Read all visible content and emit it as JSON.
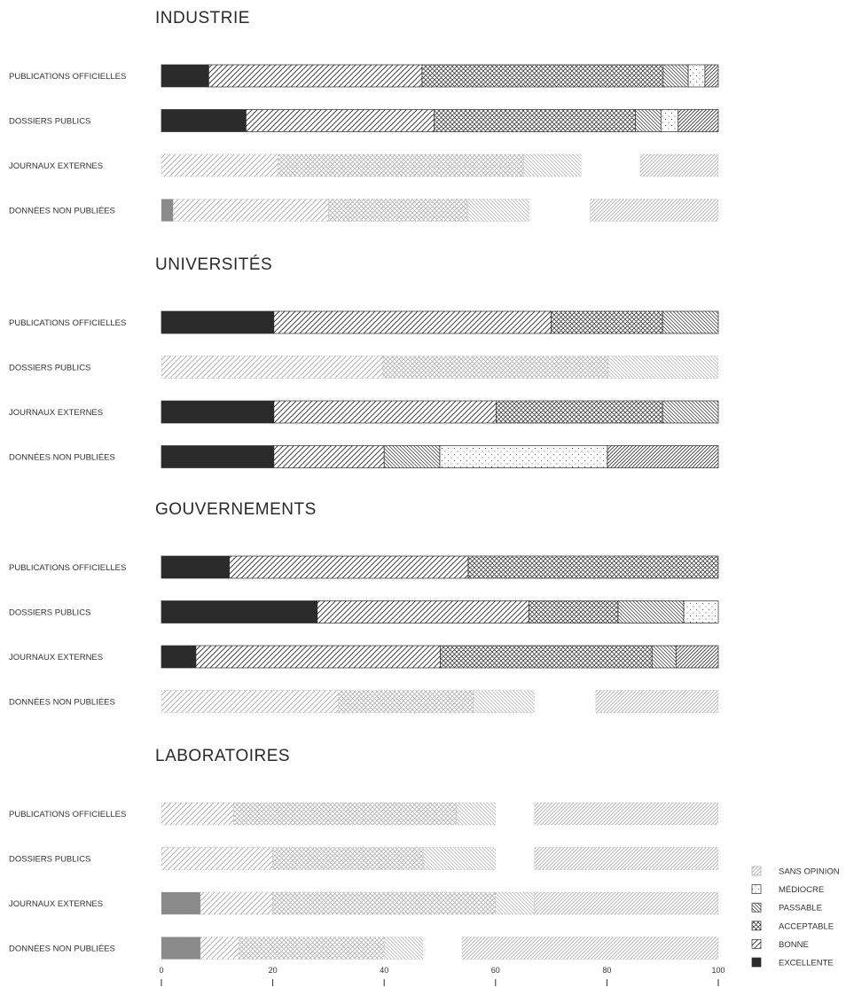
{
  "chart_data": {
    "type": "bar",
    "orientation": "horizontal",
    "stacked": true,
    "xlim": [
      0,
      100
    ],
    "x_ticks": [
      "0",
      "20",
      "40",
      "60",
      "80",
      "100"
    ],
    "grid": false,
    "legend_position": "bottom-right",
    "categories_legend": [
      {
        "name": "SANS OPINION",
        "pattern": "sans_opinion"
      },
      {
        "name": "MÉDIOCRE",
        "pattern": "mediocre"
      },
      {
        "name": "PASSABLE",
        "pattern": "passable"
      },
      {
        "name": "ACCEPTABLE",
        "pattern": "acceptable"
      },
      {
        "name": "BONNE",
        "pattern": "bonne"
      },
      {
        "name": "EXCELLENTE",
        "pattern": "excellente"
      }
    ],
    "groups": [
      {
        "title": "INDUSTRIE",
        "rows": [
          {
            "label": "PUBLICATIONS OFFICIELLES",
            "faded": false,
            "segments": [
              {
                "category": "EXCELLENTE",
                "start": 0,
                "end": 8.5
              },
              {
                "category": "BONNE",
                "start": 8.5,
                "end": 46.8
              },
              {
                "category": "ACCEPTABLE",
                "start": 46.8,
                "end": 90.1
              },
              {
                "category": "PASSABLE",
                "start": 90.1,
                "end": 94.6
              },
              {
                "category": "MÉDIOCRE",
                "start": 94.6,
                "end": 97.6
              },
              {
                "category": "SANS OPINION",
                "start": 97.6,
                "end": 100
              }
            ]
          },
          {
            "label": "DOSSIERS PUBLICS",
            "faded": false,
            "segments": [
              {
                "category": "EXCELLENTE",
                "start": 0,
                "end": 15.2
              },
              {
                "category": "BONNE",
                "start": 15.2,
                "end": 49
              },
              {
                "category": "ACCEPTABLE",
                "start": 49,
                "end": 85.1
              },
              {
                "category": "PASSABLE",
                "start": 85.1,
                "end": 89.7
              },
              {
                "category": "MÉDIOCRE",
                "start": 89.7,
                "end": 92.8
              },
              {
                "category": "SANS OPINION",
                "start": 92.8,
                "end": 100
              }
            ]
          },
          {
            "label": "JOURNAUX EXTERNES",
            "faded": true,
            "segments": [
              {
                "category": "BONNE",
                "start": 0,
                "end": 21
              },
              {
                "category": "ACCEPTABLE",
                "start": 21,
                "end": 65
              },
              {
                "category": "PASSABLE",
                "start": 65,
                "end": 75.4
              },
              {
                "category": "MÉDIOCRE",
                "start": 75.4,
                "end": 86
              },
              {
                "category": "SANS OPINION",
                "start": 86,
                "end": 100
              }
            ]
          },
          {
            "label": "DONNÉES NON PUBLIÉES",
            "faded": true,
            "segments": [
              {
                "category": "EXCELLENTE",
                "start": 0,
                "end": 2.1
              },
              {
                "category": "BONNE",
                "start": 2.1,
                "end": 30
              },
              {
                "category": "ACCEPTABLE",
                "start": 30,
                "end": 55
              },
              {
                "category": "PASSABLE",
                "start": 55,
                "end": 66.1
              },
              {
                "category": "MÉDIOCRE",
                "start": 66.1,
                "end": 77
              },
              {
                "category": "SANS OPINION",
                "start": 77,
                "end": 100
              }
            ]
          }
        ]
      },
      {
        "title": "UNIVERSITÉS",
        "rows": [
          {
            "label": "PUBLICATIONS OFFICIELLES",
            "faded": false,
            "segments": [
              {
                "category": "EXCELLENTE",
                "start": 0,
                "end": 20.2
              },
              {
                "category": "BONNE",
                "start": 20.2,
                "end": 70
              },
              {
                "category": "ACCEPTABLE",
                "start": 70,
                "end": 90
              },
              {
                "category": "PASSABLE",
                "start": 90,
                "end": 100
              }
            ]
          },
          {
            "label": "DOSSIERS PUBLICS",
            "faded": true,
            "segments": [
              {
                "category": "BONNE",
                "start": 0,
                "end": 39.8
              },
              {
                "category": "ACCEPTABLE",
                "start": 39.8,
                "end": 80.2
              },
              {
                "category": "PASSABLE",
                "start": 80.2,
                "end": 100
              }
            ]
          },
          {
            "label": "JOURNAUX EXTERNES",
            "faded": false,
            "segments": [
              {
                "category": "EXCELLENTE",
                "start": 0,
                "end": 20.2
              },
              {
                "category": "BONNE",
                "start": 20.2,
                "end": 60.1
              },
              {
                "category": "ACCEPTABLE",
                "start": 60.1,
                "end": 90
              },
              {
                "category": "PASSABLE",
                "start": 90,
                "end": 100
              }
            ]
          },
          {
            "label": "DONNÉES NON PUBLIÉES",
            "faded": false,
            "segments": [
              {
                "category": "EXCELLENTE",
                "start": 0,
                "end": 20.2
              },
              {
                "category": "BONNE",
                "start": 20.2,
                "end": 40
              },
              {
                "category": "PASSABLE",
                "start": 40,
                "end": 50
              },
              {
                "category": "MÉDIOCRE",
                "start": 50,
                "end": 80.1
              },
              {
                "category": "SANS OPINION",
                "start": 80.1,
                "end": 100
              }
            ]
          }
        ]
      },
      {
        "title": "GOUVERNEMENTS",
        "rows": [
          {
            "label": "PUBLICATIONS OFFICIELLES",
            "faded": false,
            "segments": [
              {
                "category": "EXCELLENTE",
                "start": 0,
                "end": 12.2
              },
              {
                "category": "BONNE",
                "start": 12.2,
                "end": 55.1
              },
              {
                "category": "ACCEPTABLE",
                "start": 55.1,
                "end": 100
              }
            ]
          },
          {
            "label": "DOSSIERS PUBLICS",
            "faded": false,
            "segments": [
              {
                "category": "EXCELLENTE",
                "start": 0,
                "end": 28
              },
              {
                "category": "BONNE",
                "start": 28,
                "end": 66
              },
              {
                "category": "ACCEPTABLE",
                "start": 66,
                "end": 82
              },
              {
                "category": "PASSABLE",
                "start": 82,
                "end": 93.8
              },
              {
                "category": "MÉDIOCRE",
                "start": 93.8,
                "end": 100
              }
            ]
          },
          {
            "label": "JOURNAUX EXTERNES",
            "faded": false,
            "segments": [
              {
                "category": "EXCELLENTE",
                "start": 0,
                "end": 6.2
              },
              {
                "category": "BONNE",
                "start": 6.2,
                "end": 50.1
              },
              {
                "category": "ACCEPTABLE",
                "start": 50.1,
                "end": 88.1
              },
              {
                "category": "PASSABLE",
                "start": 88.1,
                "end": 92.4
              },
              {
                "category": "SANS OPINION",
                "start": 92.4,
                "end": 100
              }
            ]
          },
          {
            "label": "DONNÉES NON PUBLIÉES",
            "faded": true,
            "segments": [
              {
                "category": "BONNE",
                "start": 0,
                "end": 31.8
              },
              {
                "category": "ACCEPTABLE",
                "start": 31.8,
                "end": 56
              },
              {
                "category": "PASSABLE",
                "start": 56,
                "end": 67
              },
              {
                "category": "MÉDIOCRE",
                "start": 67,
                "end": 78
              },
              {
                "category": "SANS OPINION",
                "start": 78,
                "end": 100
              }
            ]
          }
        ]
      },
      {
        "title": "LABORATOIRES",
        "rows": [
          {
            "label": "PUBLICATIONS OFFICIELLES",
            "faded": true,
            "segments": [
              {
                "category": "BONNE",
                "start": 0,
                "end": 13
              },
              {
                "category": "ACCEPTABLE",
                "start": 13,
                "end": 53
              },
              {
                "category": "PASSABLE",
                "start": 53,
                "end": 60
              },
              {
                "category": "MÉDIOCRE",
                "start": 60,
                "end": 67
              },
              {
                "category": "SANS OPINION",
                "start": 67,
                "end": 100
              }
            ]
          },
          {
            "label": "DOSSIERS PUBLICS",
            "faded": true,
            "segments": [
              {
                "category": "BONNE",
                "start": 0,
                "end": 20
              },
              {
                "category": "ACCEPTABLE",
                "start": 20,
                "end": 47
              },
              {
                "category": "PASSABLE",
                "start": 47,
                "end": 60
              },
              {
                "category": "MÉDIOCRE",
                "start": 60,
                "end": 67
              },
              {
                "category": "SANS OPINION",
                "start": 67,
                "end": 100
              }
            ]
          },
          {
            "label": "JOURNAUX EXTERNES",
            "faded": true,
            "segments": [
              {
                "category": "EXCELLENTE",
                "start": 0,
                "end": 7
              },
              {
                "category": "BONNE",
                "start": 7,
                "end": 20
              },
              {
                "category": "ACCEPTABLE",
                "start": 20,
                "end": 60
              },
              {
                "category": "PASSABLE",
                "start": 60,
                "end": 67
              },
              {
                "category": "SANS OPINION",
                "start": 67,
                "end": 100
              }
            ]
          },
          {
            "label": "DONNÉES NON PUBLIÉES",
            "faded": true,
            "segments": [
              {
                "category": "EXCELLENTE",
                "start": 0,
                "end": 7
              },
              {
                "category": "BONNE",
                "start": 7,
                "end": 14
              },
              {
                "category": "ACCEPTABLE",
                "start": 14,
                "end": 40
              },
              {
                "category": "PASSABLE",
                "start": 40,
                "end": 47
              },
              {
                "category": "MÉDIOCRE",
                "start": 47,
                "end": 54
              },
              {
                "category": "SANS OPINION",
                "start": 54,
                "end": 100
              }
            ]
          }
        ]
      }
    ]
  },
  "colors": {
    "ink": "#2b2b2b",
    "faded_ink": "#a8a8a8",
    "background": "#ffffff"
  }
}
